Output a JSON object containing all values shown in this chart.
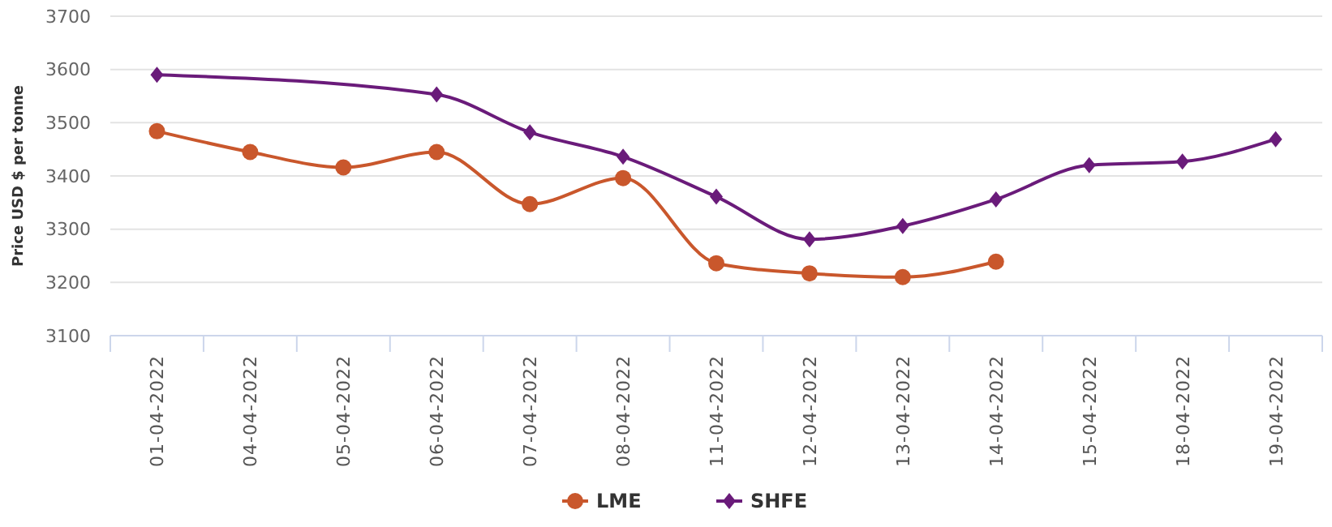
{
  "chart_data": {
    "type": "line",
    "ylabel": "Price USD $ per tonne",
    "categories": [
      "01-04-2022",
      "04-04-2022",
      "05-04-2022",
      "06-04-2022",
      "07-04-2022",
      "08-04-2022",
      "11-04-2022",
      "12-04-2022",
      "13-04-2022",
      "14-04-2022",
      "15-04-2022",
      "18-04-2022",
      "19-04-2022"
    ],
    "series": [
      {
        "name": "LME",
        "color": "#c9572c",
        "marker": "circle",
        "values": [
          3484,
          3445,
          3416,
          3445,
          3347,
          3396,
          3236,
          3217,
          3210,
          3239,
          null,
          null,
          null
        ]
      },
      {
        "name": "SHFE",
        "color": "#6a1b7a",
        "marker": "diamond",
        "values": [
          3590,
          null,
          null,
          3553,
          3482,
          3436,
          3361,
          3281,
          3306,
          3356,
          3420,
          3427,
          3469
        ]
      }
    ],
    "ylim": [
      3100,
      3700
    ],
    "yticks": [
      3100,
      3200,
      3300,
      3400,
      3500,
      3600,
      3700
    ],
    "grid": "y",
    "legend": "bottom"
  }
}
